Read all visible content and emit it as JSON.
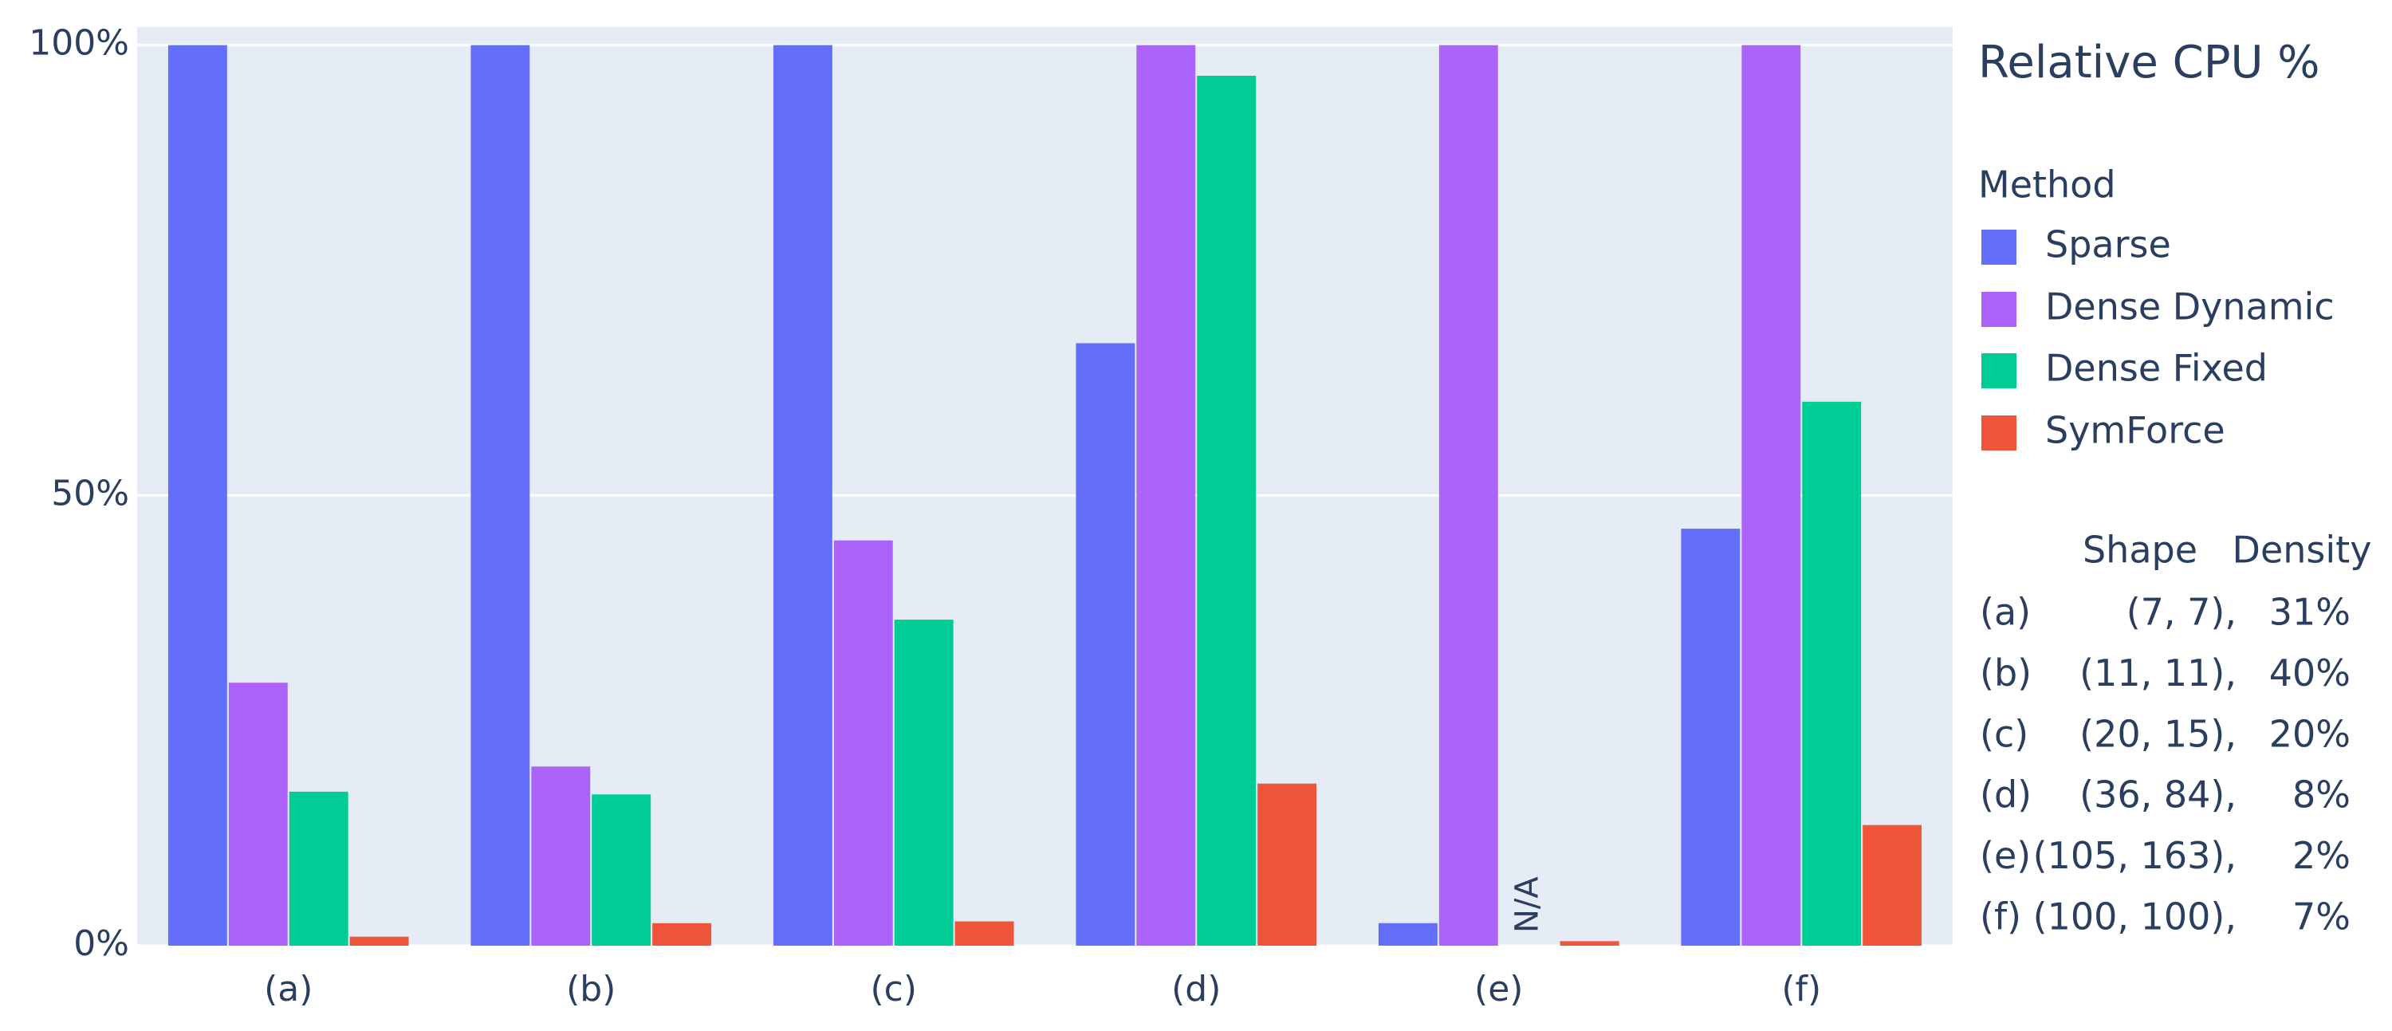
{
  "chart_data": {
    "type": "bar",
    "categories": [
      "(a)",
      "(b)",
      "(c)",
      "(d)",
      "(e)",
      "(f)"
    ],
    "series": [
      {
        "name": "Sparse",
        "color": "#636efa",
        "values": [
          100,
          100,
          100,
          66.9,
          2.5,
          46.3
        ]
      },
      {
        "name": "Dense Dynamic",
        "color": "#ab63fa",
        "values": [
          29.2,
          19.9,
          45.0,
          100,
          100,
          100
        ]
      },
      {
        "name": "Dense Fixed",
        "color": "#00cc96",
        "values": [
          17.1,
          16.8,
          36.2,
          96.6,
          null,
          60.4
        ]
      },
      {
        "name": "SymForce",
        "color": "#ef553b",
        "values": [
          1.0,
          2.5,
          2.7,
          18.0,
          0.5,
          13.4
        ]
      }
    ],
    "na_label": "N/A",
    "ylim": [
      0,
      102
    ],
    "yticks": [
      {
        "value": 0,
        "label": "0%"
      },
      {
        "value": 50,
        "label": "50%"
      },
      {
        "value": 100,
        "label": "100%"
      }
    ],
    "grid": true,
    "legend_heading": "Relative CPU %",
    "legend_title": "Method",
    "notes": {
      "header": [
        "Shape",
        "Density"
      ],
      "rows": [
        [
          "(a)",
          "(7, 7),",
          "31%"
        ],
        [
          "(b)",
          "(11, 11),",
          "40%"
        ],
        [
          "(c)",
          "(20, 15),",
          "20%"
        ],
        [
          "(d)",
          "(36, 84),",
          "8%"
        ],
        [
          "(e)",
          "(105, 163),",
          "2%"
        ],
        [
          "(f)",
          "(100, 100),",
          "7%"
        ]
      ]
    }
  }
}
